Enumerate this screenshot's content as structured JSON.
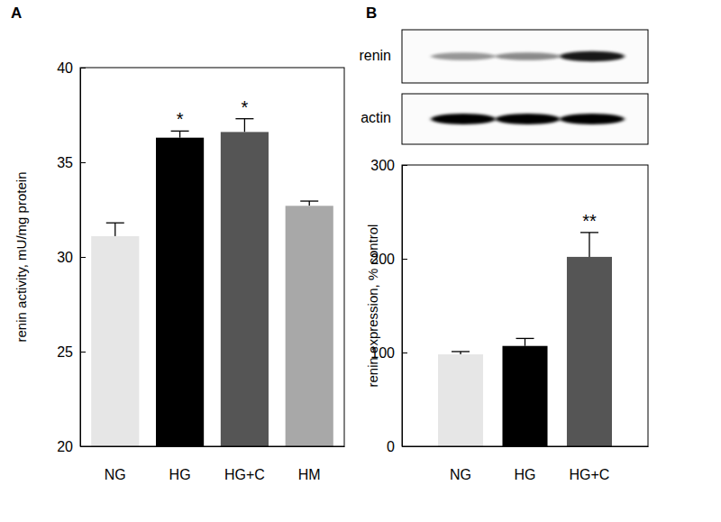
{
  "chart_data": [
    {
      "type": "bar",
      "title": "A",
      "y_label": "renin activity, mU/mg protein",
      "categories": [
        "NG",
        "HG",
        "HG+C",
        "HM"
      ],
      "values": [
        31.1,
        36.3,
        36.6,
        32.7
      ],
      "errors": [
        0.7,
        0.35,
        0.7,
        0.25
      ],
      "colors": [
        "#e6e6e6",
        "#000000",
        "#555555",
        "#a8a8a8"
      ],
      "ylim": [
        20,
        40
      ],
      "yticks": [
        20,
        25,
        30,
        35,
        40
      ],
      "annotations": [
        {
          "text": "*",
          "x": "HG"
        },
        {
          "text": "*",
          "x": "HG+C"
        }
      ]
    },
    {
      "type": "bar",
      "title": "B",
      "y_label": "renin expression, % control",
      "categories": [
        "NG",
        "HG",
        "HG+C"
      ],
      "values": [
        98,
        107,
        202
      ],
      "errors": [
        3,
        8,
        26
      ],
      "colors": [
        "#e6e6e6",
        "#000000",
        "#555555"
      ],
      "ylim": [
        0,
        300
      ],
      "yticks": [
        0,
        100,
        200,
        300
      ],
      "annotations": [
        {
          "text": "**",
          "x": "HG+C"
        }
      ],
      "blot_rows": [
        "renin",
        "actin"
      ]
    }
  ]
}
